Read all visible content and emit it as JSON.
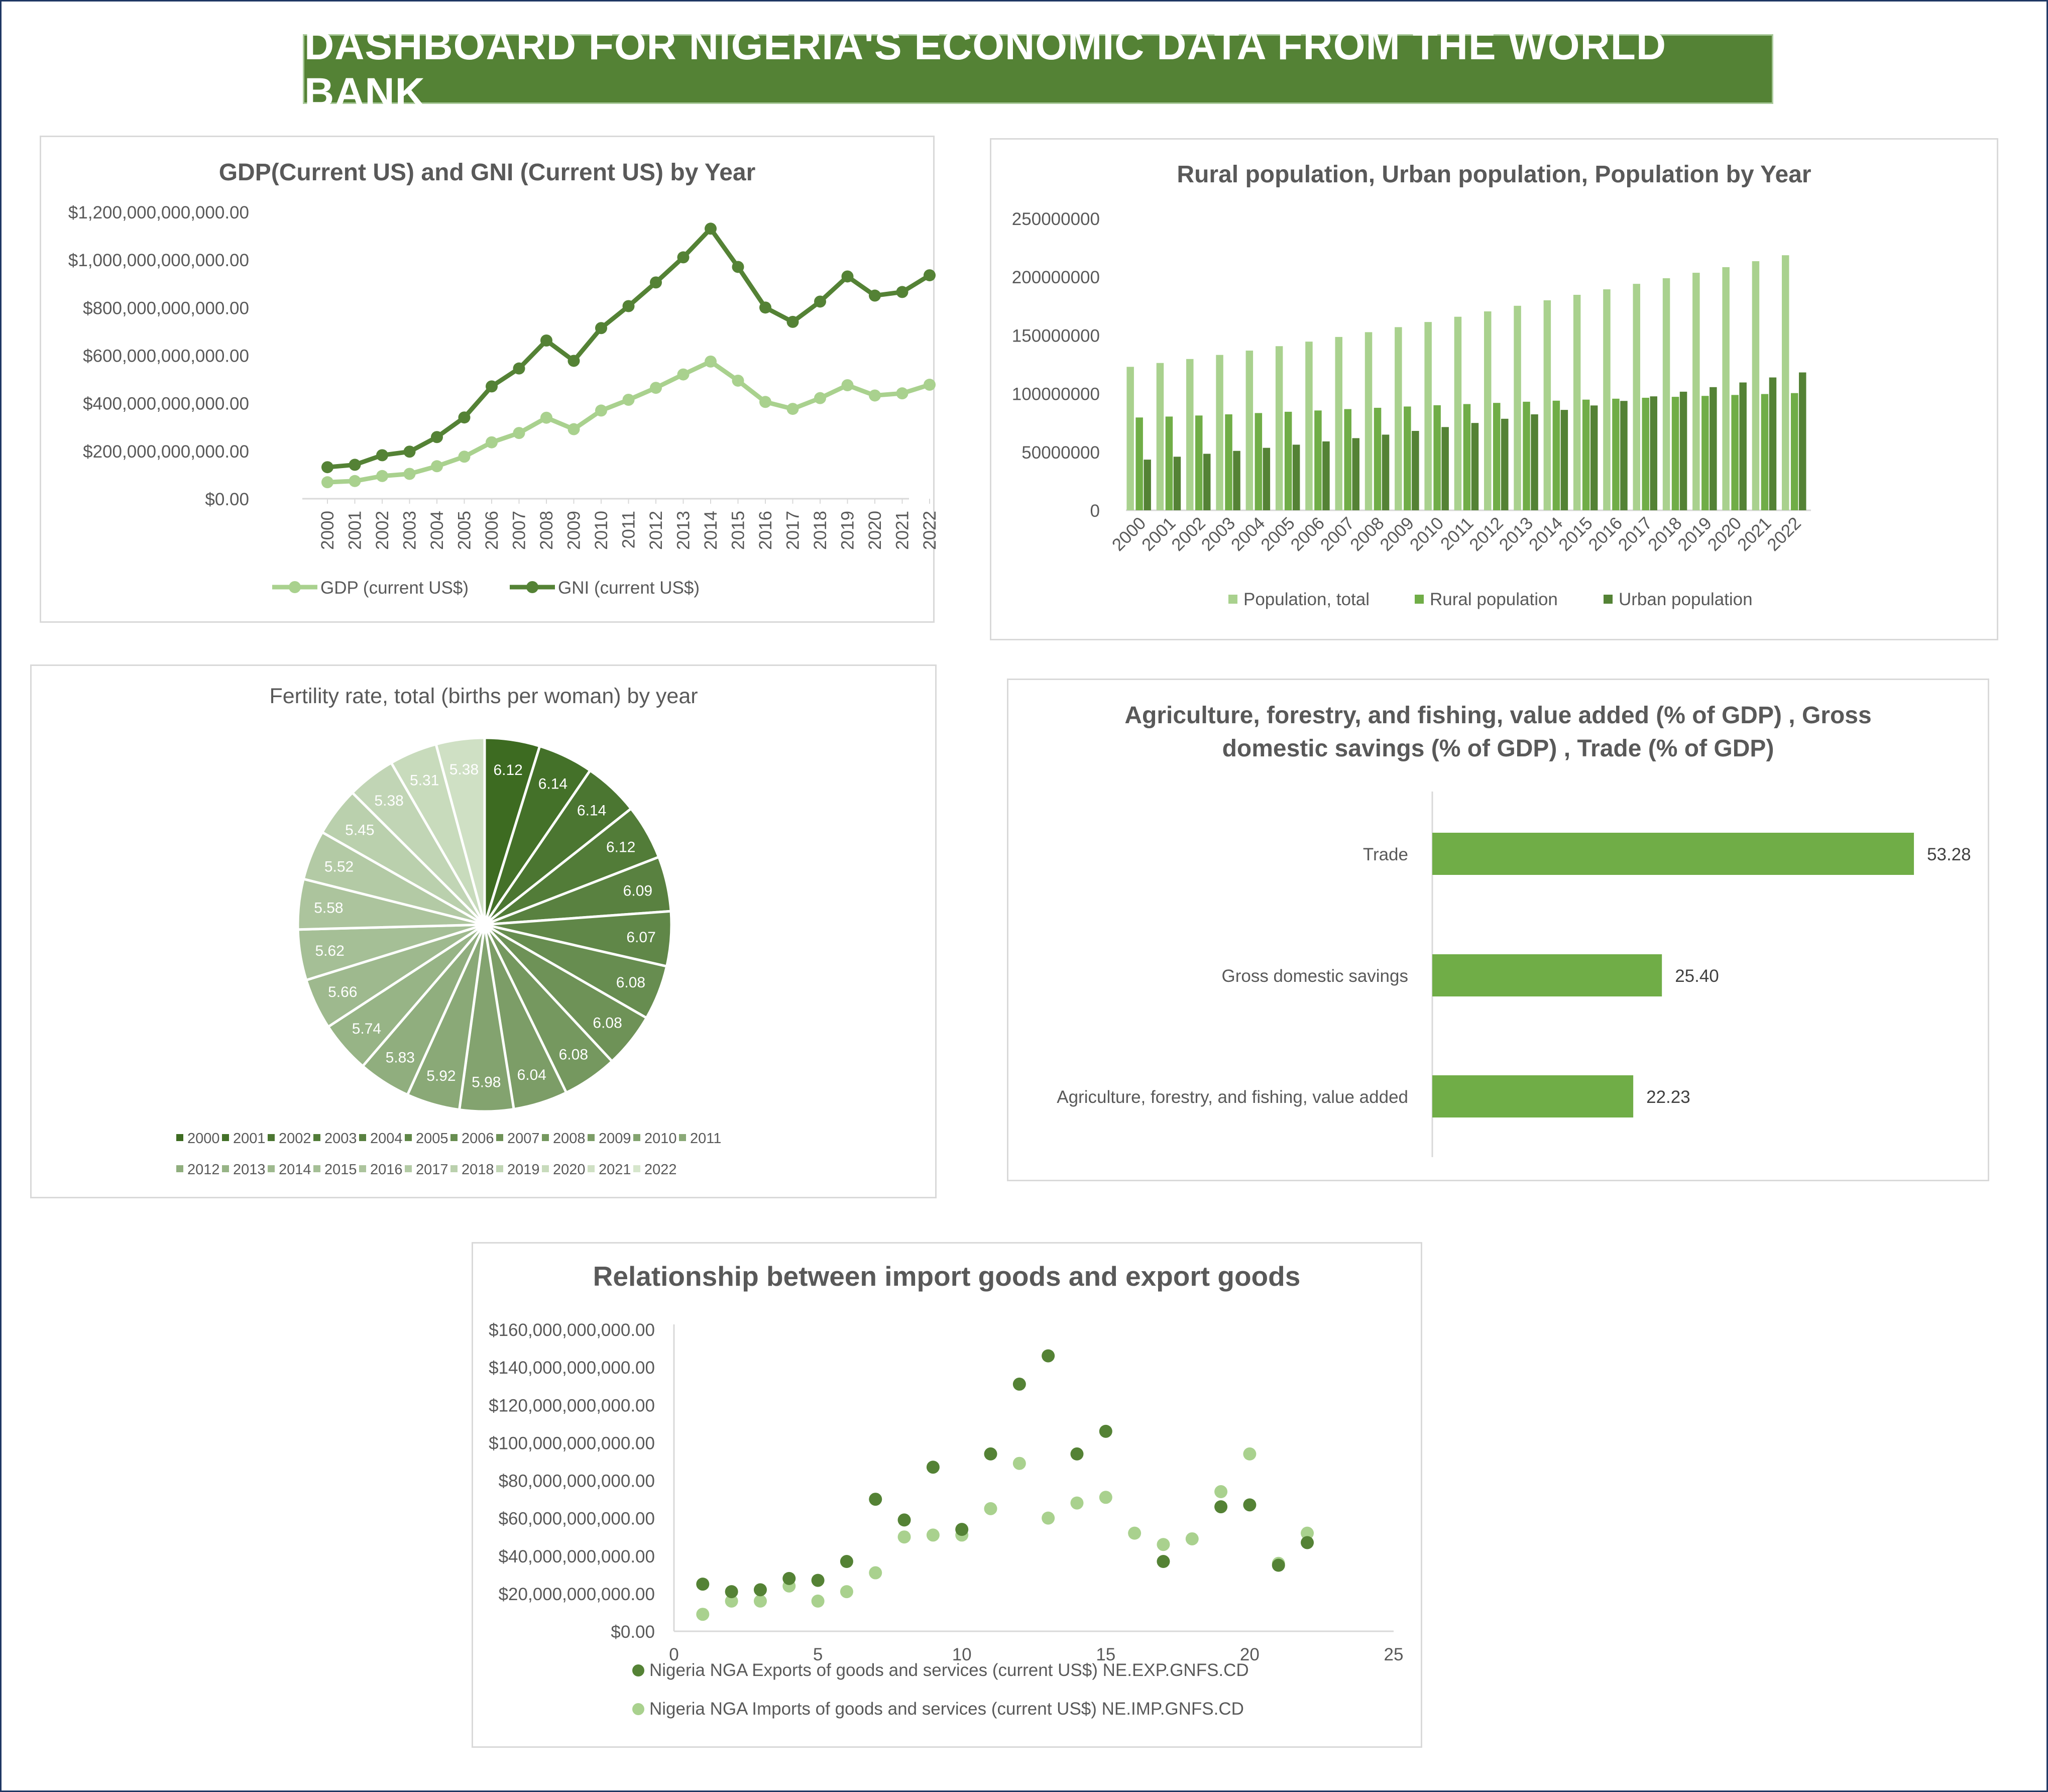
{
  "dashboard_title": "DASHBOARD FOR NIGERIA'S ECONOMIC DATA FROM THE WORLD BANK",
  "colors": {
    "banner": "#548235",
    "gdp": "#a9d18e",
    "gni": "#548235",
    "population_total": "#a9d18e",
    "rural": "#70ad47",
    "urban": "#548235",
    "bar": "#70ad47",
    "exports": "#548235",
    "imports": "#a9d18e"
  },
  "chart_data": [
    {
      "id": "gdp_gni",
      "type": "line",
      "title": "GDP(Current US) and GNI (Current US) by Year",
      "x": [
        "2000",
        "2001",
        "2002",
        "2003",
        "2004",
        "2005",
        "2006",
        "2007",
        "2008",
        "2009",
        "2010",
        "2011",
        "2012",
        "2013",
        "2014",
        "2015",
        "2016",
        "2017",
        "2018",
        "2019",
        "2020",
        "2021",
        "2022"
      ],
      "yticks": [
        "$0.00",
        "$200,000,000,000.00",
        "$400,000,000,000.00",
        "$600,000,000,000.00",
        "$800,000,000,000.00",
        "$1,000,000,000,000.00",
        "$1,200,000,000,000.00"
      ],
      "ylim": [
        0,
        1200000000000
      ],
      "series": [
        {
          "name": "GDP (current US$)",
          "values": [
            69000000000,
            74000000000,
            95000000000,
            104000000000,
            136000000000,
            176000000000,
            236000000000,
            275000000000,
            339000000000,
            291000000000,
            369000000000,
            414000000000,
            464000000000,
            520000000000,
            574000000000,
            494000000000,
            405000000000,
            376000000000,
            421000000000,
            475000000000,
            432000000000,
            441000000000,
            477000000000
          ]
        },
        {
          "name": "GNI (current US$)",
          "values": [
            132000000000,
            142000000000,
            182000000000,
            197000000000,
            258000000000,
            340000000000,
            470000000000,
            545000000000,
            662000000000,
            577000000000,
            714000000000,
            806000000000,
            905000000000,
            1010000000000,
            1130000000000,
            970000000000,
            800000000000,
            740000000000,
            825000000000,
            930000000000,
            850000000000,
            865000000000,
            935000000000
          ]
        }
      ],
      "legend": "bottom"
    },
    {
      "id": "population",
      "type": "bar",
      "title": "Rural population, Urban population, Population by Year",
      "categories": [
        "2000",
        "2001",
        "2002",
        "2003",
        "2004",
        "2005",
        "2006",
        "2007",
        "2008",
        "2009",
        "2010",
        "2011",
        "2012",
        "2013",
        "2014",
        "2015",
        "2016",
        "2017",
        "2018",
        "2019",
        "2020",
        "2021",
        "2022"
      ],
      "yticks": [
        "0",
        "50000000",
        "100000000",
        "150000000",
        "200000000",
        "250000000"
      ],
      "ylim": [
        0,
        250000000
      ],
      "series": [
        {
          "name": "Population, total",
          "values": [
            122900000,
            126200000,
            129600000,
            133100000,
            136800000,
            140600000,
            144500000,
            148500000,
            152600000,
            156900000,
            161300000,
            165800000,
            170400000,
            175200000,
            179900000,
            184600000,
            189300000,
            194000000,
            198800000,
            203500000,
            208300000,
            213400000,
            218500000
          ]
        },
        {
          "name": "Rural population",
          "values": [
            79500000,
            80300000,
            81200000,
            82200000,
            83300000,
            84400000,
            85500000,
            86700000,
            87800000,
            88900000,
            90000000,
            91000000,
            92000000,
            93000000,
            93900000,
            94800000,
            95600000,
            96400000,
            97200000,
            98000000,
            98800000,
            99600000,
            100400000
          ]
        },
        {
          "name": "Urban population",
          "values": [
            43400000,
            45900000,
            48400000,
            50900000,
            53500000,
            56200000,
            59000000,
            61800000,
            64800000,
            68000000,
            71300000,
            74800000,
            78400000,
            82200000,
            86000000,
            89800000,
            93700000,
            97600000,
            101600000,
            105500000,
            109500000,
            113800000,
            118100000
          ]
        }
      ],
      "legend": "bottom"
    },
    {
      "id": "fertility",
      "type": "pie",
      "title": "Fertility rate, total (births per woman) by year",
      "categories": [
        "2000",
        "2001",
        "2002",
        "2003",
        "2004",
        "2005",
        "2006",
        "2007",
        "2008",
        "2009",
        "2010",
        "2011",
        "2012",
        "2013",
        "2014",
        "2015",
        "2016",
        "2017",
        "2018",
        "2019",
        "2020",
        "2021",
        "2022"
      ],
      "values": [
        6.12,
        6.14,
        6.14,
        6.12,
        6.09,
        6.07,
        6.08,
        6.08,
        6.08,
        6.04,
        5.98,
        5.92,
        5.83,
        5.74,
        5.66,
        5.62,
        5.58,
        5.52,
        5.45,
        5.38,
        5.31,
        5.38,
        0
      ],
      "labels": [
        "6.12",
        "6.14",
        "6.14",
        "6.12",
        "6.09",
        "6.07",
        "6.08",
        "6.08",
        "6.08",
        "6.04",
        "5.98",
        "5.92",
        "5.83",
        "5.74",
        "5.66",
        "5.62",
        "5.58",
        "5.52",
        "5.45",
        "5.38",
        "5.31",
        "5.38"
      ],
      "legend": "bottom"
    },
    {
      "id": "pct_gdp",
      "type": "bar",
      "orientation": "horizontal",
      "title_lines": [
        "Agriculture, forestry, and fishing, value added (% of GDP)  , Gross",
        "domestic savings  (% of GDP) ,  Trade (% of GDP)"
      ],
      "categories": [
        "Trade",
        "Gross domestic savings",
        "Agriculture, forestry, and fishing, value added"
      ],
      "values": [
        53.28,
        25.4,
        22.23
      ],
      "labels": [
        "53.28",
        "25.40",
        "22.23"
      ]
    },
    {
      "id": "trade_scatter",
      "type": "scatter",
      "title": "Relationship between import goods and export goods",
      "xticks": [
        "0",
        "5",
        "10",
        "15",
        "20",
        "25"
      ],
      "xlim": [
        0,
        25
      ],
      "yticks": [
        "$0.00",
        "$20,000,000,000.00",
        "$40,000,000,000.00",
        "$60,000,000,000.00",
        "$80,000,000,000.00",
        "$100,000,000,000.00",
        "$120,000,000,000.00",
        "$140,000,000,000.00",
        "$160,000,000,000.00"
      ],
      "ylim": [
        0,
        160000000000
      ],
      "series": [
        {
          "name": "Nigeria NGA Exports of goods and services (current US$) NE.EXP.GNFS.CD",
          "x": [
            1,
            2,
            3,
            4,
            5,
            6,
            7,
            8,
            9,
            10,
            11,
            12,
            13,
            14,
            15,
            17,
            19,
            20,
            21,
            22
          ],
          "y": [
            25000000000,
            21000000000,
            22000000000,
            28000000000,
            27000000000,
            37000000000,
            70000000000,
            59000000000,
            87000000000,
            54000000000,
            94000000000,
            131000000000,
            146000000000,
            94000000000,
            106000000000,
            37000000000,
            66000000000,
            67000000000,
            35000000000,
            47000000000
          ]
        },
        {
          "name": "Nigeria NGA Imports of goods and services (current US$) NE.IMP.GNFS.CD",
          "x": [
            1,
            2,
            3,
            4,
            5,
            6,
            7,
            8,
            9,
            10,
            11,
            12,
            13,
            14,
            15,
            16,
            17,
            18,
            19,
            20,
            21,
            22
          ],
          "y": [
            9000000000,
            16000000000,
            16000000000,
            24000000000,
            16000000000,
            21000000000,
            31000000000,
            50000000000,
            51000000000,
            51000000000,
            65000000000,
            89000000000,
            60000000000,
            68000000000,
            71000000000,
            52000000000,
            46000000000,
            49000000000,
            74000000000,
            94000000000,
            36000000000,
            52000000000
          ]
        }
      ],
      "legend": "bottom"
    }
  ]
}
